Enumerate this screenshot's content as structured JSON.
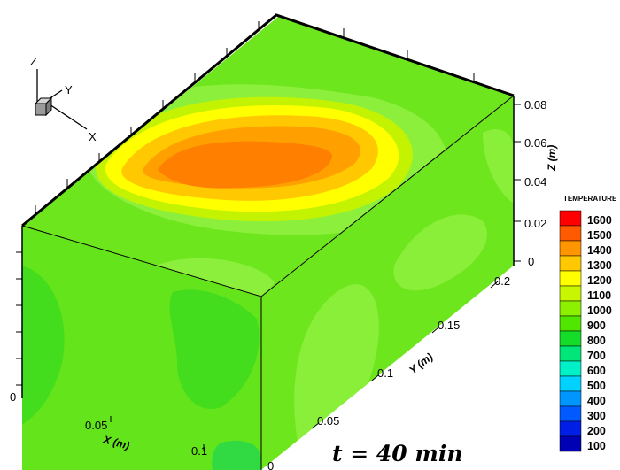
{
  "triad": {
    "z_label": "Z",
    "y_label": "Y",
    "x_label": "X"
  },
  "axes": {
    "z": {
      "title": "Z (m)",
      "ticks": [
        "0.08",
        "0.06",
        "0.04",
        "0.02",
        "0"
      ]
    },
    "y": {
      "title": "Y (m)",
      "ticks": [
        "0.2",
        "0.15",
        "0.1",
        "0.05",
        "0"
      ]
    },
    "x": {
      "title": "X (m)",
      "ticks": [
        "0",
        "0.05",
        "0.1"
      ]
    }
  },
  "legend": {
    "title": "TEMPERATURE",
    "levels": [
      {
        "label": "1600",
        "color": "#ff0000"
      },
      {
        "label": "1500",
        "color": "#ff5a00"
      },
      {
        "label": "1400",
        "color": "#ff9600"
      },
      {
        "label": "1300",
        "color": "#ffc800"
      },
      {
        "label": "1200",
        "color": "#ffff00"
      },
      {
        "label": "1100",
        "color": "#c8f500"
      },
      {
        "label": "1000",
        "color": "#8cf000"
      },
      {
        "label": "900",
        "color": "#50e600"
      },
      {
        "label": "800",
        "color": "#14dc28"
      },
      {
        "label": "700",
        "color": "#00e678"
      },
      {
        "label": "600",
        "color": "#00f0c8"
      },
      {
        "label": "500",
        "color": "#00d2ff"
      },
      {
        "label": "400",
        "color": "#0096ff"
      },
      {
        "label": "300",
        "color": "#005aff"
      },
      {
        "label": "200",
        "color": "#001ee6"
      },
      {
        "label": "100",
        "color": "#0000b4"
      }
    ]
  },
  "time_label": "t = 40 min"
}
